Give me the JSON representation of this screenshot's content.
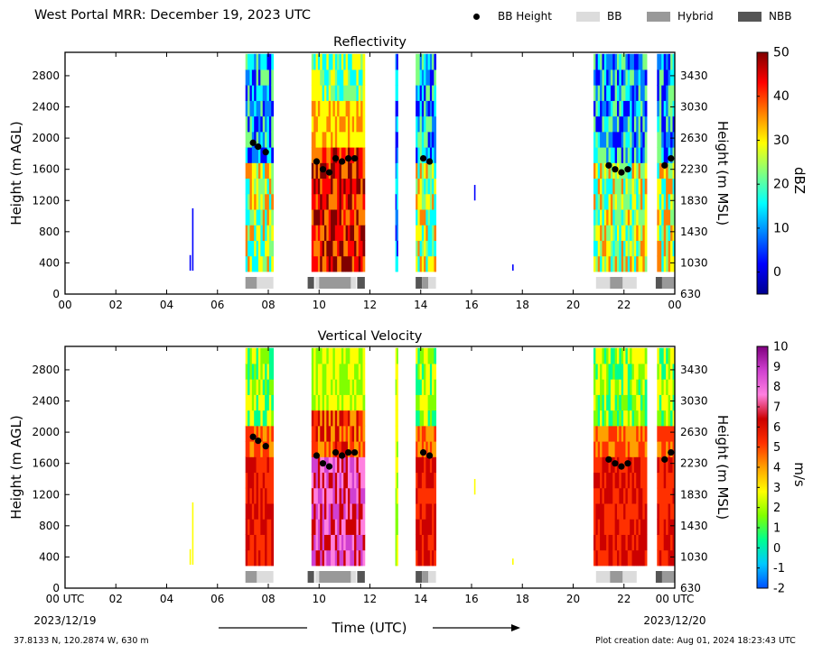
{
  "header": {
    "title": "West Portal MRR:  December 19, 2023 UTC",
    "legend": [
      {
        "label": "BB Height",
        "kind": "dot",
        "color": "#000000"
      },
      {
        "label": "BB",
        "kind": "swatch",
        "color": "#dcdcdc"
      },
      {
        "label": "Hybrid",
        "kind": "swatch",
        "color": "#999999"
      },
      {
        "label": "NBB",
        "kind": "swatch",
        "color": "#555555"
      }
    ]
  },
  "x_axis": {
    "label": "Time (UTC)",
    "ticks": [
      "00",
      "02",
      "04",
      "06",
      "08",
      "10",
      "12",
      "14",
      "16",
      "18",
      "20",
      "22",
      "00"
    ],
    "bottom_ticks": [
      "00 UTC",
      "02",
      "04",
      "06",
      "08",
      "10",
      "12",
      "14",
      "16",
      "18",
      "20",
      "22",
      "00 UTC"
    ],
    "start_date": "2023/12/19",
    "end_date": "2023/12/20"
  },
  "footer": {
    "location": "37.8133 N, 120.2874 W, 630 m",
    "creation": "Plot creation date: Aug 01, 2024 18:23:43 UTC"
  },
  "chart_data": [
    {
      "type": "heatmap",
      "title": "Reflectivity",
      "ylabel": "Height (m AGL)",
      "y2label": "Height (m MSL)",
      "xlim": [
        0,
        24
      ],
      "ylim": [
        0,
        3100
      ],
      "yticks": [
        0,
        400,
        800,
        1200,
        1600,
        2000,
        2400,
        2800
      ],
      "y2ticks": [
        "630",
        "1030",
        "1430",
        "1830",
        "2230",
        "2630",
        "3030",
        "3430"
      ],
      "colorbar": {
        "label": "dBZ",
        "range": [
          -5,
          50
        ],
        "ticks": [
          0,
          10,
          20,
          30,
          40,
          50
        ]
      },
      "colors": [
        "#00008f",
        "#0000ff",
        "#0080ff",
        "#00ffff",
        "#80ff80",
        "#ffff00",
        "#ff8000",
        "#ff0000",
        "#800000"
      ],
      "precip_bands": [
        {
          "start": 7.1,
          "end": 8.2,
          "intensity": "moderate"
        },
        {
          "start": 9.7,
          "end": 11.8,
          "intensity": "strong"
        },
        {
          "start": 13.0,
          "end": 13.1,
          "intensity": "light"
        },
        {
          "start": 13.8,
          "end": 14.6,
          "intensity": "moderate"
        },
        {
          "start": 20.8,
          "end": 22.9,
          "intensity": "moderate"
        },
        {
          "start": 23.3,
          "end": 24.0,
          "intensity": "moderate"
        }
      ],
      "bb_height": {
        "time": [
          7.4,
          7.6,
          7.9,
          9.9,
          10.15,
          10.4,
          10.65,
          10.9,
          11.15,
          11.4,
          14.1,
          14.35,
          21.4,
          21.65,
          21.9,
          22.15,
          23.6,
          23.85
        ],
        "height": [
          1940,
          1890,
          1820,
          1700,
          1600,
          1560,
          1740,
          1700,
          1740,
          1740,
          1740,
          1700,
          1650,
          1600,
          1560,
          1600,
          1650,
          1740
        ]
      },
      "bb_type": [
        {
          "start": 7.1,
          "end": 7.55,
          "type": "Hybrid"
        },
        {
          "start": 7.55,
          "end": 8.2,
          "type": "BB"
        },
        {
          "start": 9.55,
          "end": 9.8,
          "type": "NBB"
        },
        {
          "start": 9.85,
          "end": 10.0,
          "type": "BB"
        },
        {
          "start": 10.0,
          "end": 11.25,
          "type": "Hybrid"
        },
        {
          "start": 11.25,
          "end": 11.45,
          "type": "BB"
        },
        {
          "start": 11.5,
          "end": 11.8,
          "type": "NBB"
        },
        {
          "start": 13.8,
          "end": 14.05,
          "type": "NBB"
        },
        {
          "start": 14.05,
          "end": 14.3,
          "type": "Hybrid"
        },
        {
          "start": 14.3,
          "end": 14.6,
          "type": "BB"
        },
        {
          "start": 20.9,
          "end": 21.45,
          "type": "BB"
        },
        {
          "start": 21.45,
          "end": 21.95,
          "type": "Hybrid"
        },
        {
          "start": 21.95,
          "end": 22.5,
          "type": "BB"
        },
        {
          "start": 23.25,
          "end": 23.5,
          "type": "NBB"
        },
        {
          "start": 23.5,
          "end": 24.0,
          "type": "Hybrid"
        }
      ]
    },
    {
      "type": "heatmap",
      "title": "Vertical Velocity",
      "ylabel": "Height (m AGL)",
      "y2label": "Height (m MSL)",
      "xlim": [
        0,
        24
      ],
      "ylim": [
        0,
        3100
      ],
      "yticks": [
        0,
        400,
        800,
        1200,
        1600,
        2000,
        2400,
        2800
      ],
      "y2ticks": [
        "630",
        "1030",
        "1430",
        "1830",
        "2230",
        "2630",
        "3030",
        "3430"
      ],
      "colorbar": {
        "label": "m/s",
        "range": [
          -2,
          10
        ],
        "ticks": [
          "-2",
          "-1",
          "0",
          "1",
          "2",
          "3",
          "4",
          "5",
          "6",
          "7",
          "8",
          "9",
          "10"
        ]
      },
      "colors": [
        "#0050ff",
        "#00c8ff",
        "#00ff90",
        "#80ff00",
        "#ffff00",
        "#ffa000",
        "#ff3000",
        "#cc0000",
        "#ff80e0",
        "#d040d0",
        "#800080"
      ]
    }
  ]
}
